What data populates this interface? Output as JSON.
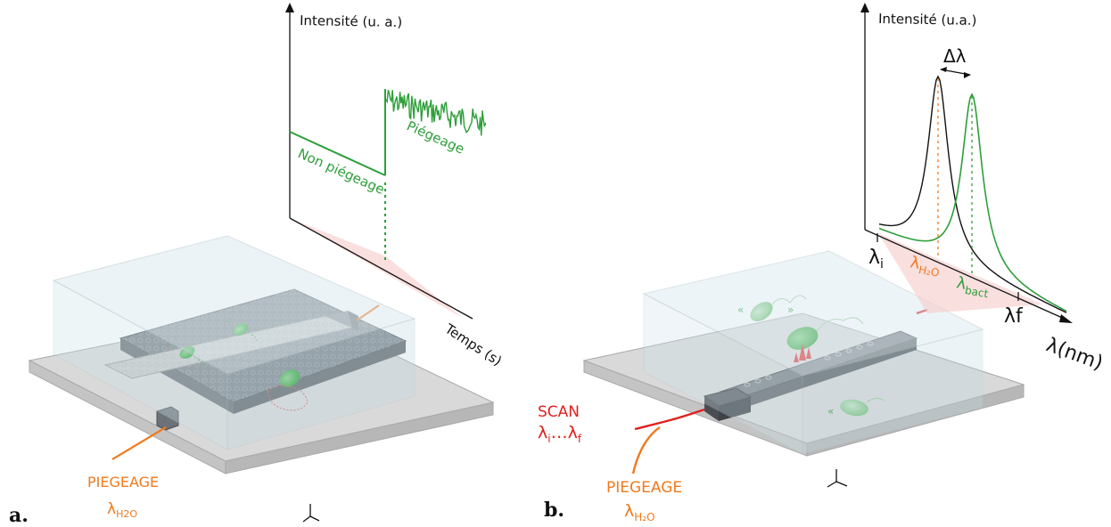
{
  "colors": {
    "green": "#2e9e3a",
    "green_dark": "#1f8f2b",
    "orange": "#f07a1e",
    "red": "#e0201e",
    "glass": "#cfe3ea",
    "chip_dark": "#6a7076",
    "base": "#cfcfcf",
    "pink": "#f7c9c9",
    "black": "#111111"
  },
  "panel_a": {
    "panel_letter": "a.",
    "y_axis_label": "Intensité (u. a.)",
    "x_axis_label": "Temps (s)",
    "low_state_label": "Non piégeage",
    "high_state_label": "Piégeage",
    "laser_label_line1": "PIEGEAGE",
    "laser_label_lambda": "λ",
    "laser_label_sub": "H2O"
  },
  "panel_b": {
    "panel_letter": "b.",
    "y_axis_label": "Intensité (u.a.)",
    "x_axis_label": "λ(nm)",
    "delta_label": "Δλ",
    "lambda_i": "λ",
    "lambda_i_sub": "i",
    "lambda_f": "λf",
    "lambda_h2o": "λ",
    "lambda_h2o_sub": "H₂O",
    "lambda_bact": "λ",
    "lambda_bact_sub": "bact",
    "scan_label_line1": "SCAN",
    "scan_range_a": "λ",
    "scan_range_a_sub": "i",
    "scan_range_dots": "…",
    "scan_range_b": "λ",
    "scan_range_b_sub": "f",
    "trap_label_line1": "PIEGEAGE",
    "trap_label_lambda": "λ",
    "trap_label_sub": "H₂O"
  }
}
